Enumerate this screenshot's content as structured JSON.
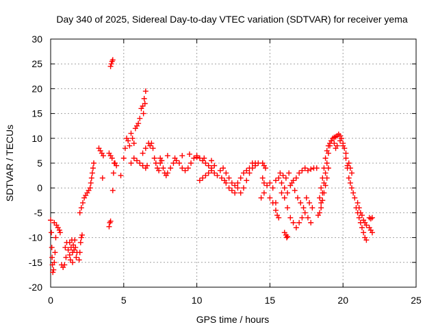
{
  "chart_data": {
    "type": "scatter",
    "title": "Day 340 of 2025, Sidereal Day-to-day VTEC variation (SDTVAR) for receiver yema",
    "xlabel": "GPS time / hours",
    "ylabel": "SDTVAR / TECUs",
    "xlim": [
      0,
      25
    ],
    "ylim": [
      -20,
      30
    ],
    "xticks": [
      0,
      5,
      10,
      15,
      20,
      25
    ],
    "yticks": [
      -20,
      -15,
      -10,
      -5,
      0,
      5,
      10,
      15,
      20,
      25,
      30
    ],
    "grid": true,
    "marker": "plus",
    "color": "#ff0000",
    "series": [
      {
        "name": "SDTVAR",
        "points": [
          [
            0.0,
            -6.5
          ],
          [
            0.05,
            -9
          ],
          [
            0.08,
            -12
          ],
          [
            0.1,
            -14
          ],
          [
            0.12,
            -15.5
          ],
          [
            0.15,
            -17
          ],
          [
            0.2,
            -16.5
          ],
          [
            0.25,
            -15
          ],
          [
            0.3,
            -13
          ],
          [
            0.35,
            -10
          ],
          [
            0.25,
            -7
          ],
          [
            0.4,
            -7.5
          ],
          [
            0.5,
            -8
          ],
          [
            0.6,
            -8.5
          ],
          [
            0.65,
            -9
          ],
          [
            0.75,
            -15.5
          ],
          [
            0.85,
            -16
          ],
          [
            0.95,
            -15.5
          ],
          [
            1.05,
            -14
          ],
          [
            1.0,
            -12
          ],
          [
            1.1,
            -11
          ],
          [
            1.2,
            -12.5
          ],
          [
            1.3,
            -13.5
          ],
          [
            1.35,
            -14.5
          ],
          [
            1.4,
            -12
          ],
          [
            1.45,
            -10.5
          ],
          [
            1.5,
            -13
          ],
          [
            1.55,
            -11.5
          ],
          [
            1.6,
            -12.5
          ],
          [
            1.65,
            -10.5
          ],
          [
            1.7,
            -12
          ],
          [
            1.75,
            -14
          ],
          [
            1.8,
            -13
          ],
          [
            1.5,
            -15
          ],
          [
            1.3,
            -11
          ],
          [
            1.95,
            -14.5
          ],
          [
            2.0,
            -13
          ],
          [
            2.05,
            -11
          ],
          [
            2.1,
            -10
          ],
          [
            2.15,
            -9.5
          ],
          [
            2.0,
            -5
          ],
          [
            2.1,
            -4
          ],
          [
            2.2,
            -3
          ],
          [
            2.3,
            -2
          ],
          [
            2.4,
            -1.5
          ],
          [
            2.5,
            -1
          ],
          [
            2.6,
            -0.5
          ],
          [
            2.7,
            0
          ],
          [
            2.75,
            1
          ],
          [
            2.8,
            2
          ],
          [
            2.85,
            3
          ],
          [
            2.9,
            4
          ],
          [
            2.95,
            5
          ],
          [
            3.3,
            8
          ],
          [
            3.4,
            7.5
          ],
          [
            3.5,
            7
          ],
          [
            3.6,
            6.5
          ],
          [
            3.55,
            2
          ],
          [
            4.0,
            7
          ],
          [
            4.1,
            6.5
          ],
          [
            4.2,
            6
          ],
          [
            4.25,
            -0.5
          ],
          [
            4.3,
            3
          ],
          [
            4.35,
            5
          ],
          [
            4.4,
            5
          ],
          [
            4.5,
            4.5
          ],
          [
            4.15,
            25
          ],
          [
            4.2,
            25.5
          ],
          [
            4.25,
            25.8
          ],
          [
            4.1,
            24.5
          ],
          [
            4.05,
            -7
          ],
          [
            4.0,
            -7.8
          ],
          [
            4.1,
            -6.7
          ],
          [
            4.8,
            2.5
          ],
          [
            5.0,
            6
          ],
          [
            5.1,
            8
          ],
          [
            5.2,
            10
          ],
          [
            5.3,
            9.5
          ],
          [
            5.4,
            8.5
          ],
          [
            5.5,
            11
          ],
          [
            5.6,
            10
          ],
          [
            5.7,
            9
          ],
          [
            5.8,
            12
          ],
          [
            5.9,
            12.5
          ],
          [
            6.0,
            13
          ],
          [
            6.1,
            14
          ],
          [
            6.2,
            16
          ],
          [
            6.3,
            16.5
          ],
          [
            6.4,
            18
          ],
          [
            6.5,
            19.5
          ],
          [
            6.45,
            17
          ],
          [
            6.35,
            15
          ],
          [
            5.5,
            5
          ],
          [
            5.7,
            6
          ],
          [
            5.9,
            5.5
          ],
          [
            6.1,
            5
          ],
          [
            6.3,
            4.5
          ],
          [
            6.5,
            4
          ],
          [
            6.6,
            4.5
          ],
          [
            6.3,
            7
          ],
          [
            6.5,
            8
          ],
          [
            6.7,
            9
          ],
          [
            6.8,
            8.5
          ],
          [
            6.9,
            9
          ],
          [
            7.0,
            8
          ],
          [
            7.1,
            6
          ],
          [
            7.2,
            5
          ],
          [
            7.3,
            4
          ],
          [
            7.4,
            3.5
          ],
          [
            7.5,
            5
          ],
          [
            7.6,
            5.5
          ],
          [
            7.7,
            4
          ],
          [
            7.8,
            3
          ],
          [
            7.9,
            2.5
          ],
          [
            8.0,
            3
          ],
          [
            8.2,
            4
          ],
          [
            8.4,
            5
          ],
          [
            8.6,
            5.5
          ],
          [
            8.8,
            5
          ],
          [
            9.0,
            4
          ],
          [
            9.2,
            3.5
          ],
          [
            9.4,
            4
          ],
          [
            9.6,
            5
          ],
          [
            9.8,
            6
          ],
          [
            10.0,
            6.2
          ],
          [
            10.2,
            6
          ],
          [
            10.4,
            5.5
          ],
          [
            10.6,
            5
          ],
          [
            10.8,
            4.5
          ],
          [
            11.0,
            4
          ],
          [
            7.5,
            6
          ],
          [
            8.0,
            6.5
          ],
          [
            8.5,
            6
          ],
          [
            9.0,
            6.5
          ],
          [
            9.5,
            6.8
          ],
          [
            10.0,
            6.5
          ],
          [
            10.5,
            6
          ],
          [
            11.0,
            5.5
          ],
          [
            11.2,
            4.5
          ],
          [
            10.2,
            1.5
          ],
          [
            10.4,
            2
          ],
          [
            10.6,
            2.5
          ],
          [
            10.8,
            3
          ],
          [
            11.0,
            3.5
          ],
          [
            11.2,
            3
          ],
          [
            11.4,
            2.5
          ],
          [
            11.6,
            3.5
          ],
          [
            11.8,
            4
          ],
          [
            12.0,
            3
          ],
          [
            12.2,
            2
          ],
          [
            12.4,
            1
          ],
          [
            12.6,
            0.5
          ],
          [
            12.8,
            0
          ],
          [
            13.0,
            -1
          ],
          [
            13.2,
            0
          ],
          [
            13.4,
            1.5
          ],
          [
            13.6,
            3
          ],
          [
            13.8,
            4
          ],
          [
            14.0,
            4.5
          ],
          [
            14.2,
            5
          ],
          [
            12.0,
            1
          ],
          [
            12.2,
            0
          ],
          [
            12.4,
            -0.5
          ],
          [
            12.6,
            -1
          ],
          [
            12.8,
            1
          ],
          [
            13.0,
            2
          ],
          [
            13.2,
            3
          ],
          [
            13.4,
            3.5
          ],
          [
            13.6,
            4
          ],
          [
            13.8,
            5
          ],
          [
            14.0,
            5
          ],
          [
            11.7,
            2
          ],
          [
            11.9,
            1.5
          ],
          [
            14.5,
            5
          ],
          [
            14.6,
            4.5
          ],
          [
            14.7,
            4
          ],
          [
            14.5,
            2
          ],
          [
            14.6,
            1
          ],
          [
            14.8,
            0.5
          ],
          [
            15.0,
            1
          ],
          [
            15.2,
            0
          ],
          [
            15.4,
            1.5
          ],
          [
            15.6,
            2
          ],
          [
            15.8,
            1
          ],
          [
            16.0,
            0
          ],
          [
            16.2,
            -1
          ],
          [
            16.4,
            0.5
          ],
          [
            16.6,
            1.5
          ],
          [
            16.8,
            2
          ],
          [
            17.0,
            3
          ],
          [
            17.2,
            3.5
          ],
          [
            17.4,
            4
          ],
          [
            14.4,
            -2
          ],
          [
            14.6,
            -1
          ],
          [
            15.0,
            -2
          ],
          [
            15.2,
            -3
          ],
          [
            15.4,
            -4.5
          ],
          [
            15.5,
            -5.5
          ],
          [
            15.6,
            -6
          ],
          [
            15.4,
            -3
          ],
          [
            15.8,
            -1
          ],
          [
            16.0,
            -2
          ],
          [
            16.2,
            -4
          ],
          [
            16.4,
            -6
          ],
          [
            16.6,
            -7
          ],
          [
            16.8,
            -8
          ],
          [
            17.0,
            -7
          ],
          [
            17.2,
            -6
          ],
          [
            17.4,
            -5
          ],
          [
            17.6,
            -6
          ],
          [
            17.8,
            -7
          ],
          [
            17.5,
            -2
          ],
          [
            17.7,
            -3
          ],
          [
            17.9,
            -4
          ],
          [
            16.0,
            -9
          ],
          [
            16.1,
            -9.5
          ],
          [
            16.15,
            -10
          ],
          [
            16.2,
            -9.8
          ],
          [
            15.7,
            3
          ],
          [
            15.9,
            2.5
          ],
          [
            16.1,
            2
          ],
          [
            16.3,
            3
          ],
          [
            16.5,
            1
          ],
          [
            16.7,
            -0.5
          ],
          [
            16.9,
            -2
          ],
          [
            17.1,
            -3
          ],
          [
            17.3,
            -4
          ],
          [
            17.6,
            3.5
          ],
          [
            17.8,
            3.8
          ],
          [
            18.0,
            4
          ],
          [
            18.2,
            4
          ],
          [
            18.3,
            -5.5
          ],
          [
            18.4,
            -5
          ],
          [
            18.5,
            -3
          ],
          [
            18.6,
            -1
          ],
          [
            18.7,
            1
          ],
          [
            18.8,
            3
          ],
          [
            18.9,
            5
          ],
          [
            19.0,
            7
          ],
          [
            19.1,
            8.5
          ],
          [
            19.2,
            9.5
          ],
          [
            19.3,
            10
          ],
          [
            19.4,
            10.2
          ],
          [
            19.5,
            10.3
          ],
          [
            19.6,
            10.5
          ],
          [
            19.7,
            10.8
          ],
          [
            19.8,
            10.5
          ],
          [
            19.9,
            10
          ],
          [
            20.0,
            9
          ],
          [
            20.1,
            8
          ],
          [
            20.2,
            6
          ],
          [
            20.3,
            4
          ],
          [
            18.4,
            -2
          ],
          [
            18.5,
            0
          ],
          [
            18.6,
            2
          ],
          [
            18.7,
            4
          ],
          [
            18.8,
            6
          ],
          [
            18.9,
            7.5
          ],
          [
            19.0,
            8.5
          ],
          [
            19.1,
            9
          ],
          [
            19.2,
            9.5
          ],
          [
            19.4,
            9
          ],
          [
            19.5,
            8
          ],
          [
            19.6,
            8.5
          ],
          [
            19.8,
            9.5
          ],
          [
            20.0,
            8.5
          ],
          [
            20.2,
            7
          ],
          [
            20.4,
            5
          ],
          [
            18.5,
            -4
          ],
          [
            18.6,
            -2.5
          ],
          [
            18.7,
            -1
          ],
          [
            18.8,
            0.5
          ],
          [
            18.9,
            2
          ],
          [
            19.0,
            4
          ],
          [
            20.3,
            4.5
          ],
          [
            20.5,
            4
          ],
          [
            20.6,
            3
          ],
          [
            20.4,
            2
          ],
          [
            20.5,
            1
          ],
          [
            20.6,
            0
          ],
          [
            20.7,
            -1
          ],
          [
            20.8,
            -2
          ],
          [
            20.9,
            -4
          ],
          [
            21.0,
            -5
          ],
          [
            21.1,
            -6
          ],
          [
            21.2,
            -7
          ],
          [
            21.3,
            -8
          ],
          [
            21.4,
            -9
          ],
          [
            21.5,
            -10
          ],
          [
            21.6,
            -10.5
          ],
          [
            21.0,
            -3
          ],
          [
            21.1,
            -4
          ],
          [
            21.2,
            -5
          ],
          [
            21.3,
            -5.5
          ],
          [
            21.4,
            -6.5
          ],
          [
            21.5,
            -7
          ],
          [
            21.6,
            -7.5
          ],
          [
            21.8,
            -6
          ],
          [
            21.9,
            -6.2
          ],
          [
            22.0,
            -6
          ],
          [
            21.8,
            -8
          ],
          [
            21.9,
            -8.5
          ],
          [
            22.0,
            -9
          ]
        ]
      }
    ]
  }
}
